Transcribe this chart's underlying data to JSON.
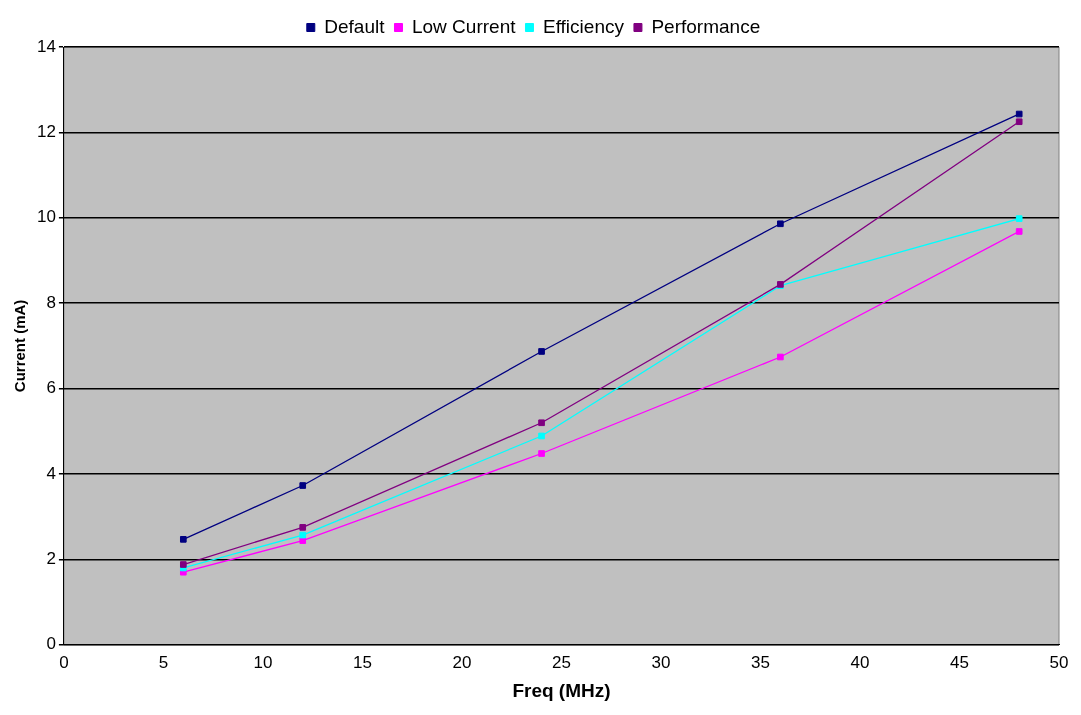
{
  "chart_data": {
    "type": "line",
    "xlabel": "Freq (MHz)",
    "ylabel": "Current (mA)",
    "x": [
      6,
      12,
      24,
      36,
      48
    ],
    "series": [
      {
        "name": "Default",
        "color": "#000080",
        "values": [
          2.47,
          3.73,
          6.87,
          9.86,
          12.43
        ]
      },
      {
        "name": "Low Current",
        "color": "#ff00ff",
        "values": [
          1.7,
          2.44,
          4.48,
          6.74,
          9.68
        ]
      },
      {
        "name": "Efficiency",
        "color": "#00ffff",
        "values": [
          1.8,
          2.57,
          4.89,
          8.41,
          9.98
        ]
      },
      {
        "name": "Performance",
        "color": "#800080",
        "values": [
          1.88,
          2.75,
          5.2,
          8.44,
          12.25
        ]
      }
    ],
    "xlim": [
      0,
      50
    ],
    "xticks": [
      0,
      5,
      10,
      15,
      20,
      25,
      30,
      35,
      40,
      45,
      50
    ],
    "ylim": [
      0,
      14
    ],
    "yticks": [
      0,
      2,
      4,
      6,
      8,
      10,
      12,
      14
    ],
    "grid": "y",
    "legend": "top",
    "marker": "square",
    "line_style": "solid"
  }
}
